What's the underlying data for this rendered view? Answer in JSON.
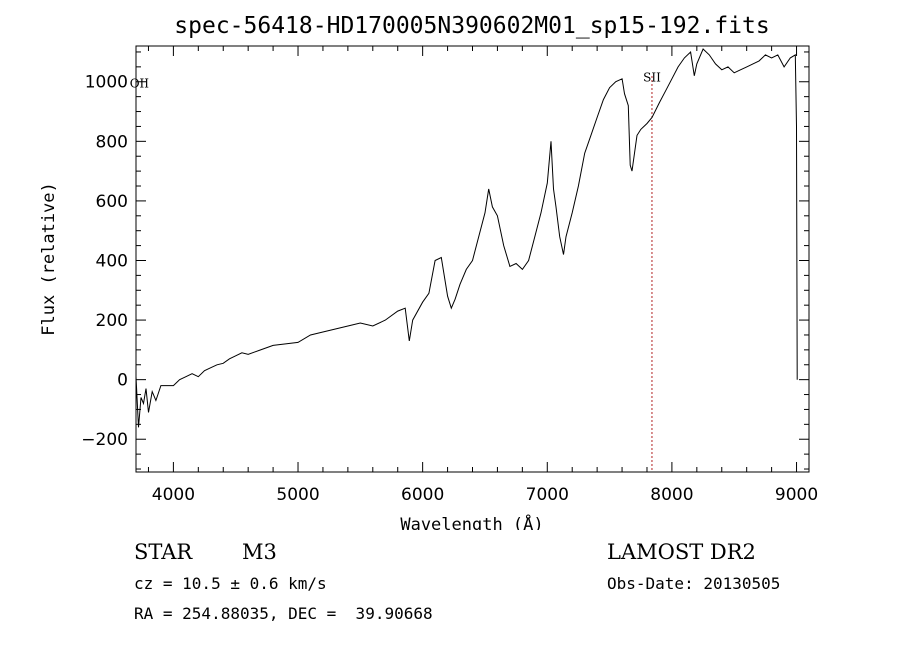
{
  "chart_data": {
    "type": "line",
    "title": "spec-56418-HD170005N390602M01_sp15-192.fits",
    "xlabel": "Wavelength (Å)",
    "ylabel": "Flux (relative)",
    "xlim": [
      3700,
      9100
    ],
    "ylim": [
      -310,
      1120
    ],
    "xticks": [
      4000,
      5000,
      6000,
      7000,
      8000,
      9000
    ],
    "yticks": [
      -200,
      0,
      200,
      400,
      600,
      800,
      1000
    ],
    "grid": false,
    "line_color": "#000000",
    "marker_color": "#b22222",
    "annotations": [
      {
        "label": "OII",
        "x": 3727,
        "y": 980
      },
      {
        "label": "SII",
        "x": 7840,
        "y": 1000,
        "marker_line": true
      }
    ],
    "series": [
      {
        "x": [
          3700,
          3720,
          3740,
          3760,
          3780,
          3800,
          3830,
          3860,
          3900,
          3950,
          4000,
          4050,
          4100,
          4150,
          4200,
          4250,
          4300,
          4350,
          4400,
          4450,
          4500,
          4550,
          4600,
          4700,
          4800,
          4900,
          5000,
          5100,
          5200,
          5300,
          5400,
          5500,
          5600,
          5700,
          5800,
          5860,
          5893,
          5920,
          6000,
          6050,
          6100,
          6150,
          6200,
          6230,
          6260,
          6300,
          6350,
          6400,
          6450,
          6500,
          6530,
          6560,
          6600,
          6650,
          6700,
          6750,
          6800,
          6850,
          6900,
          6950,
          7000,
          7030,
          7050,
          7070,
          7100,
          7130,
          7150,
          7200,
          7250,
          7300,
          7350,
          7400,
          7450,
          7500,
          7550,
          7600,
          7620,
          7650,
          7665,
          7680,
          7700,
          7720,
          7750,
          7800,
          7840,
          7900,
          7950,
          8000,
          8050,
          8100,
          8150,
          8180,
          8200,
          8250,
          8300,
          8350,
          8400,
          8450,
          8500,
          8550,
          8600,
          8650,
          8700,
          8750,
          8800,
          8850,
          8900,
          8950,
          8990,
          9000,
          9005
        ],
        "y": [
          10,
          -160,
          -60,
          -80,
          -30,
          -110,
          -40,
          -70,
          -20,
          -20,
          -20,
          0,
          10,
          20,
          10,
          30,
          40,
          50,
          55,
          70,
          80,
          90,
          85,
          100,
          115,
          120,
          125,
          150,
          160,
          170,
          180,
          190,
          180,
          200,
          230,
          240,
          130,
          200,
          260,
          290,
          400,
          410,
          280,
          240,
          270,
          320,
          370,
          400,
          480,
          560,
          640,
          580,
          550,
          450,
          380,
          390,
          370,
          400,
          480,
          560,
          660,
          800,
          640,
          580,
          480,
          420,
          480,
          560,
          650,
          760,
          820,
          880,
          940,
          980,
          1000,
          1010,
          960,
          920,
          720,
          700,
          760,
          820,
          840,
          860,
          880,
          930,
          970,
          1010,
          1050,
          1080,
          1100,
          1020,
          1060,
          1110,
          1090,
          1060,
          1040,
          1050,
          1030,
          1040,
          1050,
          1060,
          1070,
          1090,
          1080,
          1090,
          1050,
          1080,
          1090,
          850,
          0
        ]
      }
    ]
  },
  "info": {
    "object_class": "STAR",
    "subclass": "M3",
    "survey": "LAMOST DR2",
    "cz": "cz = 10.5 ± 0.6 km/s",
    "obs_date": "Obs-Date: 20130505",
    "coords": "RA = 254.88035, DEC =  39.90668"
  }
}
